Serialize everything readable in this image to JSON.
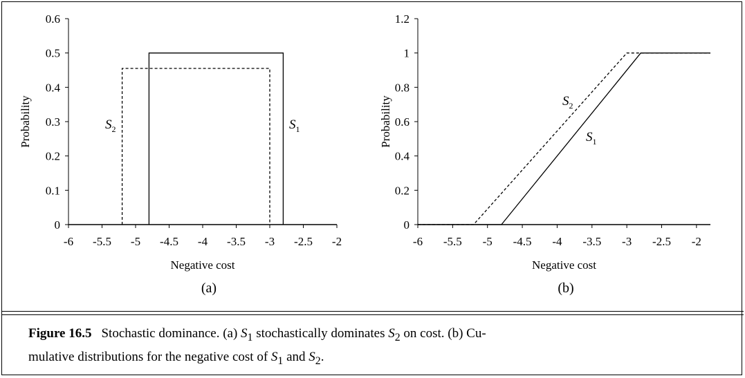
{
  "chart_data": [
    {
      "type": "line",
      "panel_label": "(a)",
      "xlabel": "Negative cost",
      "ylabel": "Probability",
      "xlim": [
        -6,
        -2
      ],
      "ylim": [
        0,
        0.6
      ],
      "xticks": [
        "-6",
        "-5.5",
        "-5",
        "-4.5",
        "-4",
        "-3.5",
        "-3",
        "-2.5",
        "-2"
      ],
      "yticks": [
        "0",
        "0.1",
        "0.2",
        "0.3",
        "0.4",
        "0.5",
        "0.6"
      ],
      "series": [
        {
          "name": "S1",
          "sub": "1",
          "style": "solid",
          "x": [
            -4.8,
            -4.8,
            -2.8,
            -2.8
          ],
          "y": [
            0,
            0.5,
            0.5,
            0
          ]
        },
        {
          "name": "S2",
          "sub": "2",
          "style": "dashed",
          "x": [
            -5.2,
            -5.2,
            -3.0,
            -3.0
          ],
          "y": [
            0,
            0.455,
            0.455,
            0
          ]
        }
      ],
      "grid": false
    },
    {
      "type": "line",
      "panel_label": "(b)",
      "xlabel": "Negative cost",
      "ylabel": "Probability",
      "xlim": [
        -6,
        -1.8
      ],
      "ylim": [
        0,
        1.2
      ],
      "xticks": [
        "-6",
        "-5.5",
        "-5",
        "-4.5",
        "-4",
        "-3.5",
        "-3",
        "-2.5",
        "-2"
      ],
      "yticks": [
        "0",
        "0.2",
        "0.4",
        "0.6",
        "0.8",
        "1",
        "1.2"
      ],
      "series": [
        {
          "name": "S1",
          "sub": "1",
          "style": "solid",
          "x": [
            -6,
            -4.8,
            -2.8,
            -1.8
          ],
          "y": [
            0,
            0,
            1,
            1
          ]
        },
        {
          "name": "S2",
          "sub": "2",
          "style": "dashed",
          "x": [
            -6,
            -5.2,
            -3.0,
            -1.8
          ],
          "y": [
            0,
            0,
            1,
            1
          ]
        }
      ],
      "grid": false
    }
  ],
  "caption": {
    "label": "Figure 16.5",
    "line1_a": "Stochastic dominance. (a) ",
    "line1_b": " stochastically dominates ",
    "line1_c": " on cost. (b) Cu-",
    "line2_a": "mulative distributions for the negative cost of ",
    "line2_b": " and ",
    "line2_c": ".",
    "s1": "S",
    "s1_sub": "1",
    "s2": "S",
    "s2_sub": "2"
  }
}
